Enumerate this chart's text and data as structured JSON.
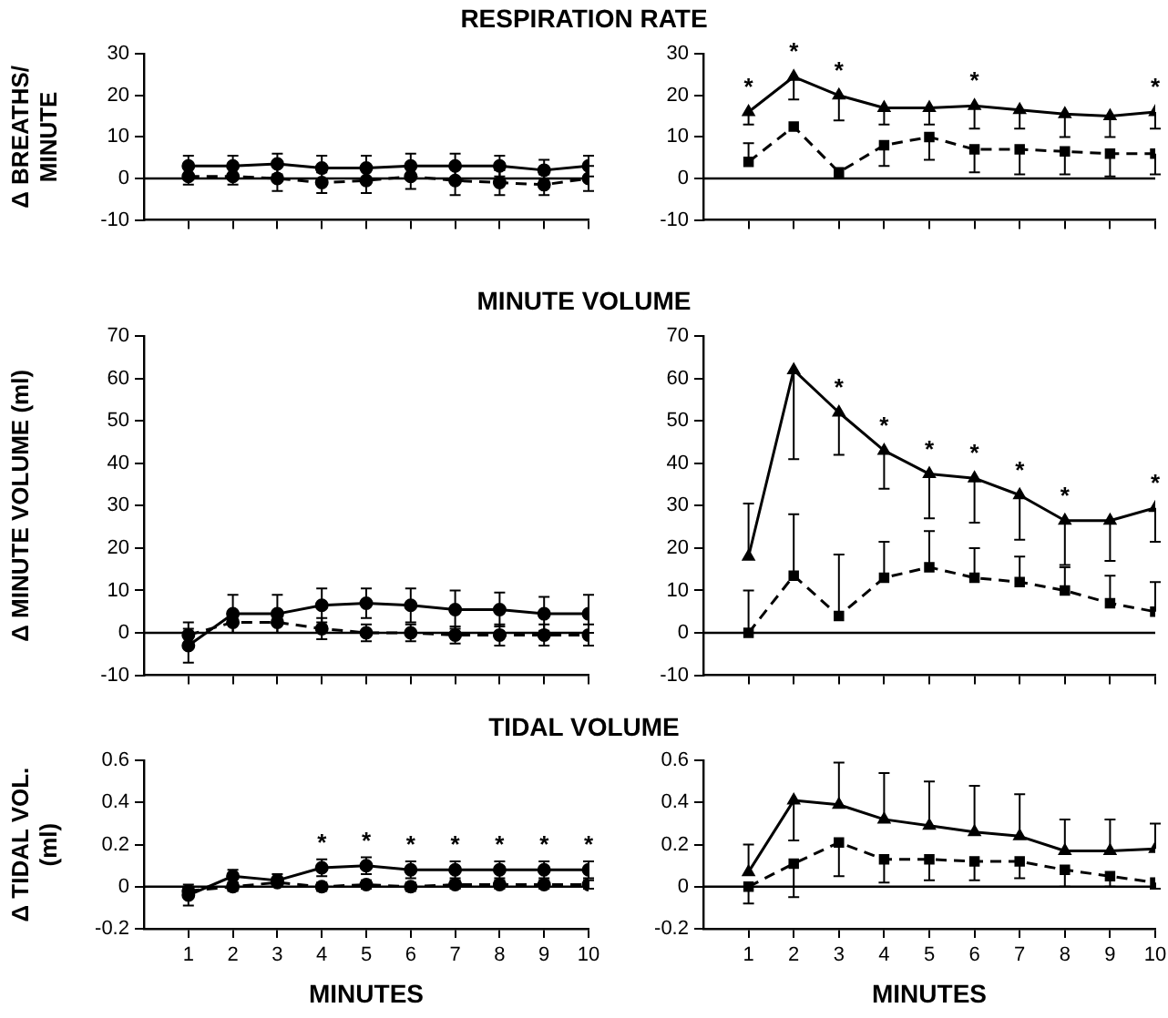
{
  "chart_data": [
    {
      "type": "line",
      "title": "RESPIRATION RATE",
      "ylabel": "Δ BREATHS/\nMINUTE",
      "x": [
        1,
        2,
        3,
        4,
        5,
        6,
        7,
        8,
        9,
        10
      ],
      "xlim": [
        0,
        10
      ],
      "xticks": [
        {
          "value": 1,
          "label": null
        },
        {
          "value": 2,
          "label": null
        },
        {
          "value": 3,
          "label": null
        },
        {
          "value": 4,
          "label": null
        },
        {
          "value": 5,
          "label": null
        },
        {
          "value": 6,
          "label": null
        },
        {
          "value": 7,
          "label": null
        },
        {
          "value": 8,
          "label": null
        },
        {
          "value": 9,
          "label": null
        },
        {
          "value": 10,
          "label": null
        }
      ],
      "ylim": [
        -10,
        30
      ],
      "yticks": [
        -10,
        0,
        10,
        20,
        30
      ],
      "tick_labels": "y",
      "grid": false,
      "legend": false,
      "ref_lines": [
        {
          "axis": "y",
          "value": 0
        }
      ],
      "series": [
        {
          "color": "#000000",
          "marker": "circle",
          "line_style": "solid",
          "values": [
            3,
            3,
            3.5,
            2.5,
            2.5,
            3,
            3,
            3,
            2,
            3
          ],
          "errors": [
            2.5,
            2.5,
            2.5,
            3,
            3,
            3,
            3,
            2.5,
            2.5,
            2.5
          ]
        },
        {
          "color": "#000000",
          "marker": "circle",
          "line_style": "dashed",
          "values": [
            0.5,
            0.5,
            0,
            -1,
            -0.5,
            0.5,
            -0.5,
            -1,
            -1.5,
            0
          ],
          "errors": [
            2,
            2,
            3,
            2.5,
            3,
            3,
            3.5,
            3,
            2.5,
            3
          ]
        }
      ]
    },
    {
      "type": "line",
      "x": [
        1,
        2,
        3,
        4,
        5,
        6,
        7,
        8,
        9,
        10
      ],
      "xlim": [
        0,
        10
      ],
      "xticks": [
        {
          "value": 1,
          "label": null
        },
        {
          "value": 2,
          "label": null
        },
        {
          "value": 3,
          "label": null
        },
        {
          "value": 4,
          "label": null
        },
        {
          "value": 5,
          "label": null
        },
        {
          "value": 6,
          "label": null
        },
        {
          "value": 7,
          "label": null
        },
        {
          "value": 8,
          "label": null
        },
        {
          "value": 9,
          "label": null
        },
        {
          "value": 10,
          "label": null
        }
      ],
      "ylim": [
        -10,
        30
      ],
      "yticks": [
        -10,
        0,
        10,
        20,
        30
      ],
      "tick_labels": "y",
      "grid": false,
      "legend": false,
      "ref_lines": [
        {
          "axis": "y",
          "value": 0
        }
      ],
      "annotations": [
        {
          "text": "*",
          "x": 1,
          "y": 16
        },
        {
          "text": "*",
          "x": 2,
          "y": 24.5
        },
        {
          "text": "*",
          "x": 3,
          "y": 20
        },
        {
          "text": "*",
          "x": 6,
          "y": 17.5
        },
        {
          "text": "*",
          "x": 10,
          "y": 16
        }
      ],
      "series": [
        {
          "color": "#000000",
          "marker": "triangle",
          "line_style": "solid",
          "values": [
            16,
            24.5,
            20,
            17,
            17,
            17.5,
            16.5,
            15.5,
            15,
            16
          ],
          "errors": [
            [
              13,
              16
            ],
            [
              19,
              24.5
            ],
            [
              14,
              20
            ],
            [
              13,
              17
            ],
            [
              13,
              17
            ],
            [
              12,
              17.5
            ],
            [
              12,
              16.5
            ],
            [
              10,
              15.5
            ],
            [
              10,
              15
            ],
            [
              12,
              16
            ]
          ]
        },
        {
          "color": "#000000",
          "marker": "square",
          "line_style": "dashed",
          "values": [
            4,
            12.5,
            1.5,
            8,
            10,
            7,
            7,
            6.5,
            6,
            6
          ],
          "errors": [
            [
              4,
              8.5
            ],
            null,
            null,
            [
              3,
              8
            ],
            [
              4.5,
              10
            ],
            [
              1.5,
              7
            ],
            [
              1,
              7
            ],
            [
              1,
              6.5
            ],
            [
              0.5,
              6
            ],
            [
              1,
              6
            ]
          ]
        }
      ]
    },
    {
      "type": "line",
      "title": "MINUTE VOLUME",
      "ylabel": "Δ MINUTE VOLUME (ml)",
      "x": [
        1,
        2,
        3,
        4,
        5,
        6,
        7,
        8,
        9,
        10
      ],
      "xlim": [
        0,
        10
      ],
      "xticks": [
        {
          "value": 1,
          "label": null
        },
        {
          "value": 2,
          "label": null
        },
        {
          "value": 3,
          "label": null
        },
        {
          "value": 4,
          "label": null
        },
        {
          "value": 5,
          "label": null
        },
        {
          "value": 6,
          "label": null
        },
        {
          "value": 7,
          "label": null
        },
        {
          "value": 8,
          "label": null
        },
        {
          "value": 9,
          "label": null
        },
        {
          "value": 10,
          "label": null
        }
      ],
      "ylim": [
        -10,
        70
      ],
      "yticks": [
        -10,
        0,
        10,
        20,
        30,
        40,
        50,
        60,
        70
      ],
      "tick_labels": "y",
      "grid": false,
      "legend": false,
      "ref_lines": [
        {
          "axis": "y",
          "value": 0
        }
      ],
      "series": [
        {
          "color": "#000000",
          "marker": "circle",
          "line_style": "solid",
          "values": [
            -3,
            4.5,
            4.5,
            6.5,
            7,
            6.5,
            5.5,
            5.5,
            4.5,
            4.5
          ],
          "errors": [
            4,
            4.5,
            4.5,
            4,
            3.5,
            4,
            4.5,
            4,
            4,
            4.5
          ]
        },
        {
          "color": "#000000",
          "marker": "circle",
          "line_style": "dashed",
          "values": [
            -0.5,
            2.5,
            2.5,
            1,
            0,
            0,
            -0.5,
            -0.5,
            -0.5,
            -0.5
          ],
          "errors": [
            3,
            2.5,
            2.5,
            2.5,
            2,
            2,
            2,
            2.5,
            2.5,
            2.5
          ]
        }
      ]
    },
    {
      "type": "line",
      "x": [
        1,
        2,
        3,
        4,
        5,
        6,
        7,
        8,
        9,
        10
      ],
      "xlim": [
        0,
        10
      ],
      "xticks": [
        {
          "value": 1,
          "label": null
        },
        {
          "value": 2,
          "label": null
        },
        {
          "value": 3,
          "label": null
        },
        {
          "value": 4,
          "label": null
        },
        {
          "value": 5,
          "label": null
        },
        {
          "value": 6,
          "label": null
        },
        {
          "value": 7,
          "label": null
        },
        {
          "value": 8,
          "label": null
        },
        {
          "value": 9,
          "label": null
        },
        {
          "value": 10,
          "label": null
        }
      ],
      "ylim": [
        -10,
        70
      ],
      "yticks": [
        -10,
        0,
        10,
        20,
        30,
        40,
        50,
        60,
        70
      ],
      "tick_labels": "y",
      "grid": false,
      "legend": false,
      "ref_lines": [
        {
          "axis": "y",
          "value": 0
        }
      ],
      "annotations": [
        {
          "text": "*",
          "x": 3,
          "y": 52
        },
        {
          "text": "*",
          "x": 4,
          "y": 43
        },
        {
          "text": "*",
          "x": 5,
          "y": 37.5
        },
        {
          "text": "*",
          "x": 6,
          "y": 36.5
        },
        {
          "text": "*",
          "x": 7,
          "y": 32.5
        },
        {
          "text": "*",
          "x": 8,
          "y": 26.5
        },
        {
          "text": "*",
          "x": 10,
          "y": 29.5
        }
      ],
      "series": [
        {
          "color": "#000000",
          "marker": "triangle",
          "line_style": "solid",
          "values": [
            18,
            62,
            52,
            43,
            37.5,
            36.5,
            32.5,
            26.5,
            26.5,
            29.5
          ],
          "errors": [
            [
              18,
              30.5
            ],
            [
              41,
              62
            ],
            [
              42,
              52
            ],
            [
              34,
              43
            ],
            [
              27,
              37.5
            ],
            [
              26,
              36.5
            ],
            [
              22,
              32.5
            ],
            [
              16,
              26.5
            ],
            [
              17,
              26.5
            ],
            [
              21.5,
              29.5
            ]
          ]
        },
        {
          "color": "#000000",
          "marker": "square",
          "line_style": "dashed",
          "values": [
            0,
            13.5,
            4,
            13,
            15.5,
            13,
            12,
            10,
            7,
            5
          ],
          "errors": [
            [
              0,
              10
            ],
            [
              13.5,
              28
            ],
            [
              4,
              18.5
            ],
            [
              13,
              21.5
            ],
            [
              15.5,
              24
            ],
            [
              13,
              20
            ],
            [
              12,
              18
            ],
            [
              10,
              15.5
            ],
            [
              7,
              13.5
            ],
            [
              5,
              12
            ]
          ]
        }
      ]
    },
    {
      "type": "line",
      "title": "TIDAL VOLUME",
      "ylabel": "Δ TIDAL VOL.\n(ml)",
      "xlabel": "MINUTES",
      "x": [
        1,
        2,
        3,
        4,
        5,
        6,
        7,
        8,
        9,
        10
      ],
      "xlim": [
        0,
        10
      ],
      "xticks": [
        1,
        2,
        3,
        4,
        5,
        6,
        7,
        8,
        9,
        10
      ],
      "ylim": [
        -0.2,
        0.6
      ],
      "yticks": [
        -0.2,
        0,
        0.2,
        0.4,
        0.6
      ],
      "grid": false,
      "legend": false,
      "ref_lines": [
        {
          "axis": "y",
          "value": 0
        }
      ],
      "annotations": [
        {
          "text": "*",
          "x": 4,
          "y": 0.09
        },
        {
          "text": "*",
          "x": 5,
          "y": 0.1
        },
        {
          "text": "*",
          "x": 6,
          "y": 0.08
        },
        {
          "text": "*",
          "x": 7,
          "y": 0.08
        },
        {
          "text": "*",
          "x": 8,
          "y": 0.08
        },
        {
          "text": "*",
          "x": 9,
          "y": 0.08
        },
        {
          "text": "*",
          "x": 10,
          "y": 0.08
        }
      ],
      "series": [
        {
          "color": "#000000",
          "marker": "circle",
          "line_style": "solid",
          "values": [
            -0.04,
            0.05,
            0.03,
            0.09,
            0.1,
            0.08,
            0.08,
            0.08,
            0.08,
            0.08
          ],
          "errors": [
            0.05,
            0.03,
            0.03,
            0.04,
            0.04,
            0.04,
            0.04,
            0.04,
            0.04,
            0.04
          ]
        },
        {
          "color": "#000000",
          "marker": "circle",
          "line_style": "dashed",
          "values": [
            -0.02,
            0,
            0.02,
            0,
            0.01,
            0,
            0.01,
            0.01,
            0.01,
            0.01
          ],
          "errors": [
            0.02,
            0.02,
            null,
            0.02,
            0.02,
            0.02,
            0.02,
            0.02,
            0.02,
            0.02
          ]
        }
      ]
    },
    {
      "type": "line",
      "xlabel": "MINUTES",
      "x": [
        1,
        2,
        3,
        4,
        5,
        6,
        7,
        8,
        9,
        10
      ],
      "xlim": [
        0,
        10
      ],
      "xticks": [
        1,
        2,
        3,
        4,
        5,
        6,
        7,
        8,
        9,
        10
      ],
      "ylim": [
        -0.2,
        0.6
      ],
      "yticks": [
        -0.2,
        0,
        0.2,
        0.4,
        0.6
      ],
      "grid": false,
      "legend": false,
      "ref_lines": [
        {
          "axis": "y",
          "value": 0
        }
      ],
      "series": [
        {
          "color": "#000000",
          "marker": "triangle",
          "line_style": "solid",
          "values": [
            0.07,
            0.41,
            0.39,
            0.32,
            0.29,
            0.26,
            0.24,
            0.17,
            0.17,
            0.18
          ],
          "errors": [
            [
              0.07,
              0.2
            ],
            [
              0.22,
              0.41
            ],
            [
              0.39,
              0.59
            ],
            [
              0.32,
              0.54
            ],
            [
              0.29,
              0.5
            ],
            [
              0.26,
              0.48
            ],
            [
              0.24,
              0.44
            ],
            [
              0.17,
              0.32
            ],
            [
              0.17,
              0.32
            ],
            [
              0.18,
              0.3
            ]
          ]
        },
        {
          "color": "#000000",
          "marker": "square",
          "line_style": "dashed",
          "values": [
            0,
            0.11,
            0.21,
            0.13,
            0.13,
            0.12,
            0.12,
            0.08,
            0.05,
            0.02
          ],
          "errors": [
            [
              -0.08,
              0
            ],
            [
              -0.05,
              0.11
            ],
            [
              0.05,
              0.21
            ],
            [
              0.02,
              0.13
            ],
            [
              0.03,
              0.13
            ],
            [
              0.03,
              0.12
            ],
            [
              0.04,
              0.12
            ],
            [
              0,
              0.08
            ],
            [
              0,
              0.05
            ],
            [
              -0.01,
              0.02
            ]
          ]
        }
      ]
    }
  ]
}
